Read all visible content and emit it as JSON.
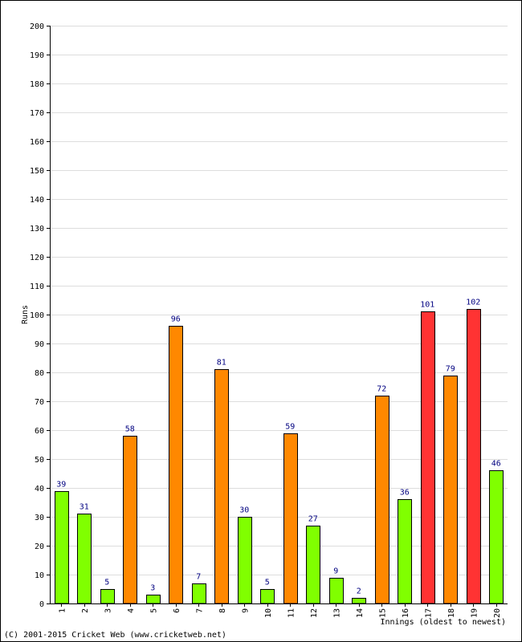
{
  "chart_data": {
    "type": "bar",
    "title": "",
    "xlabel": "Innings (oldest to newest)",
    "ylabel": "Runs",
    "ylim": [
      0,
      200
    ],
    "ytick_step": 10,
    "grid": true,
    "categories": [
      "1",
      "2",
      "3",
      "4",
      "5",
      "6",
      "7",
      "8",
      "9",
      "10",
      "11",
      "12",
      "13",
      "14",
      "15",
      "16",
      "17",
      "18",
      "19",
      "20"
    ],
    "values": [
      39,
      31,
      5,
      58,
      3,
      96,
      7,
      81,
      30,
      5,
      59,
      27,
      9,
      2,
      72,
      36,
      101,
      79,
      102,
      46
    ],
    "value_labels": [
      "39",
      "31",
      "5",
      "58",
      "3",
      "96",
      "7",
      "81",
      "30",
      "5",
      "59",
      "27",
      "9",
      "2",
      "72",
      "36",
      "101",
      "79",
      "102",
      "46"
    ],
    "bar_colors": [
      "#80ff00",
      "#80ff00",
      "#80ff00",
      "#ff8800",
      "#80ff00",
      "#ff8800",
      "#80ff00",
      "#ff8800",
      "#80ff00",
      "#80ff00",
      "#ff8800",
      "#80ff00",
      "#80ff00",
      "#80ff00",
      "#ff8800",
      "#80ff00",
      "#ff3333",
      "#ff8800",
      "#ff3333",
      "#80ff00"
    ],
    "colors": {
      "under_50": "#80ff00",
      "fifty": "#ff8800",
      "hundred": "#ff3333",
      "label": "#000080",
      "grid": "#dddddd"
    }
  },
  "footer": {
    "copyright": "(C) 2001-2015 Cricket Web (www.cricketweb.net)"
  }
}
